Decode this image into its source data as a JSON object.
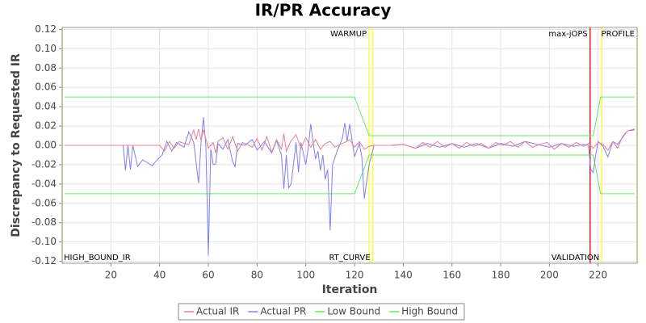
{
  "chart_data": {
    "type": "line",
    "title": "IR/PR Accuracy",
    "x_label": "Iteration",
    "y_label": "Discrepancy to Requested IR",
    "xlim": [
      0,
      236
    ],
    "xticks": [
      20,
      40,
      60,
      80,
      100,
      120,
      140,
      160,
      180,
      200,
      220
    ],
    "ylim": [
      -0.122,
      0.122
    ],
    "yticks": [
      {
        "value": -0.12,
        "label": "-0.12"
      },
      {
        "value": -0.1,
        "label": "-0.10"
      },
      {
        "value": -0.08,
        "label": "-0.08"
      },
      {
        "value": -0.06,
        "label": "-0.06"
      },
      {
        "value": -0.04,
        "label": "-0.04"
      },
      {
        "value": -0.02,
        "label": "-0.02"
      },
      {
        "value": 0,
        "label": "0.00"
      },
      0.02,
      0.04,
      0.06,
      0.08,
      {
        "value": 0.1,
        "label": "0.10"
      },
      0.12
    ],
    "grid": true,
    "legend": "bottom",
    "markers": [
      {
        "x": 0,
        "color": "#c8e860",
        "label": "HIGH_BOUND_IR",
        "label_pos": "bottom"
      },
      {
        "x": 126,
        "color": "#ffff40",
        "label": "WARMUP",
        "label_pos": "top"
      },
      {
        "x": 127.5,
        "color": "#ffff40",
        "label": "RT_CURVE",
        "label_pos": "bottom"
      },
      {
        "x": 216.7,
        "color": "#e02020",
        "label": "max-jOPS",
        "label_pos": "top"
      },
      {
        "x": 221.5,
        "color": "#ffff40",
        "label": "VALIDATION",
        "label_pos": "bottom"
      },
      {
        "x": 236,
        "color": "#ffff40",
        "label": "PROFILE",
        "label_pos": "top"
      }
    ],
    "series": [
      {
        "name": "Actual IR",
        "color": "#e88090",
        "x": [
          1,
          40,
          42,
          44,
          46,
          48,
          50,
          52,
          54,
          55,
          56,
          57,
          58,
          60,
          62,
          63,
          64,
          66,
          68,
          70,
          72,
          74,
          76,
          78,
          80,
          82,
          84,
          86,
          88,
          90,
          91,
          92,
          94,
          96,
          98,
          100,
          102,
          104,
          106,
          108,
          110,
          112,
          114,
          116,
          118,
          120,
          122,
          124,
          126,
          128,
          130,
          135,
          140,
          145,
          148,
          151,
          154,
          157,
          160,
          163,
          166,
          169,
          172,
          175,
          178,
          181,
          184,
          187,
          190,
          193,
          196,
          199,
          202,
          205,
          208,
          211,
          214,
          216,
          218,
          220,
          222,
          224,
          226,
          228,
          230,
          232,
          235
        ],
        "values": [
          0,
          0,
          -0.006,
          0.004,
          -0.003,
          0.004,
          0.002,
          0.001,
          0.016,
          0.006,
          0.017,
          0.005,
          0.016,
          -0.003,
          0.003,
          -0.008,
          0.004,
          0.008,
          -0.004,
          0.009,
          -0.006,
          0.003,
          0.001,
          -0.002,
          0.007,
          -0.005,
          0.009,
          -0.007,
          0.006,
          -0.004,
          0.012,
          -0.006,
          0.005,
          0.011,
          -0.003,
          0.008,
          -0.002,
          0.006,
          -0.004,
          0.002,
          0.004,
          -0.002,
          0.001,
          0.003,
          0.006,
          -0.002,
          0.004,
          -0.004,
          -0.001,
          0,
          0,
          0,
          0.001,
          -0.003,
          0.003,
          -0.002,
          0.004,
          -0.002,
          0.002,
          -0.003,
          0.003,
          -0.001,
          0.002,
          -0.003,
          0.003,
          0,
          0.004,
          -0.002,
          0.004,
          -0.002,
          0.001,
          0.003,
          -0.004,
          0.002,
          -0.002,
          0.003,
          -0.001,
          0.002,
          -0.003,
          0.003,
          0.001,
          -0.005,
          0.004,
          -0.003,
          0.009,
          0.015,
          0.017
        ]
      },
      {
        "name": "Actual PR",
        "color": "#8080f0",
        "x": [
          1,
          25,
          26,
          27,
          28,
          29,
          31,
          33,
          35,
          37,
          39,
          41,
          43,
          45,
          47,
          50,
          52,
          54,
          56,
          57,
          58,
          59,
          60,
          61,
          62,
          63,
          64,
          66,
          68,
          70,
          71,
          72,
          75,
          78,
          80,
          83,
          86,
          88,
          90,
          91,
          92,
          93,
          94,
          96,
          97,
          98,
          100,
          101,
          102,
          104,
          105,
          106,
          107,
          108,
          109,
          110,
          111,
          113,
          115,
          116,
          117,
          118,
          120,
          122,
          123,
          124,
          126,
          128,
          130,
          135,
          140,
          145,
          150,
          155,
          160,
          165,
          170,
          175,
          180,
          185,
          190,
          195,
          200,
          205,
          210,
          214,
          216,
          217,
          218,
          219,
          220,
          222,
          224,
          226,
          228,
          230,
          232,
          235
        ],
        "values": [
          0,
          0,
          -0.026,
          0,
          -0.025,
          0,
          -0.022,
          -0.015,
          -0.018,
          -0.021,
          -0.015,
          -0.01,
          0.004,
          -0.006,
          0.003,
          -0.002,
          0.014,
          0.003,
          -0.039,
          0.002,
          0.029,
          -0.002,
          -0.114,
          -0.004,
          -0.02,
          -0.019,
          0.002,
          -0.004,
          0.006,
          -0.017,
          -0.022,
          0.002,
          0,
          0.006,
          -0.005,
          0.004,
          -0.008,
          0.005,
          -0.01,
          -0.045,
          -0.01,
          -0.044,
          -0.04,
          0.003,
          -0.028,
          0.003,
          -0.02,
          -0.003,
          0.022,
          -0.014,
          -0.006,
          -0.026,
          -0.01,
          -0.035,
          -0.025,
          -0.088,
          -0.02,
          -0.005,
          0.007,
          0.023,
          0.004,
          0.022,
          -0.012,
          0.002,
          -0.012,
          -0.055,
          -0.02,
          0,
          0,
          0,
          0.001,
          -0.003,
          0.002,
          -0.002,
          0.002,
          -0.002,
          0.002,
          -0.003,
          0.002,
          -0.001,
          0.004,
          0.001,
          -0.002,
          0.002,
          -0.001,
          0.001,
          0,
          -0.025,
          -0.028,
          -0.01,
          0.004,
          -0.001,
          -0.012,
          0.004,
          0.001,
          0.008,
          0.015,
          0.016
        ]
      },
      {
        "name": "Low Bound",
        "color": "#60ee60",
        "x": [
          1,
          120,
          126,
          218,
          221,
          235
        ],
        "values": [
          -0.05,
          -0.05,
          -0.01,
          -0.01,
          -0.05,
          -0.05
        ]
      },
      {
        "name": "High Bound",
        "color": "#60ee60",
        "x": [
          1,
          120,
          126,
          218,
          221,
          235
        ],
        "values": [
          0.05,
          0.05,
          0.01,
          0.01,
          0.05,
          0.05
        ]
      }
    ]
  }
}
